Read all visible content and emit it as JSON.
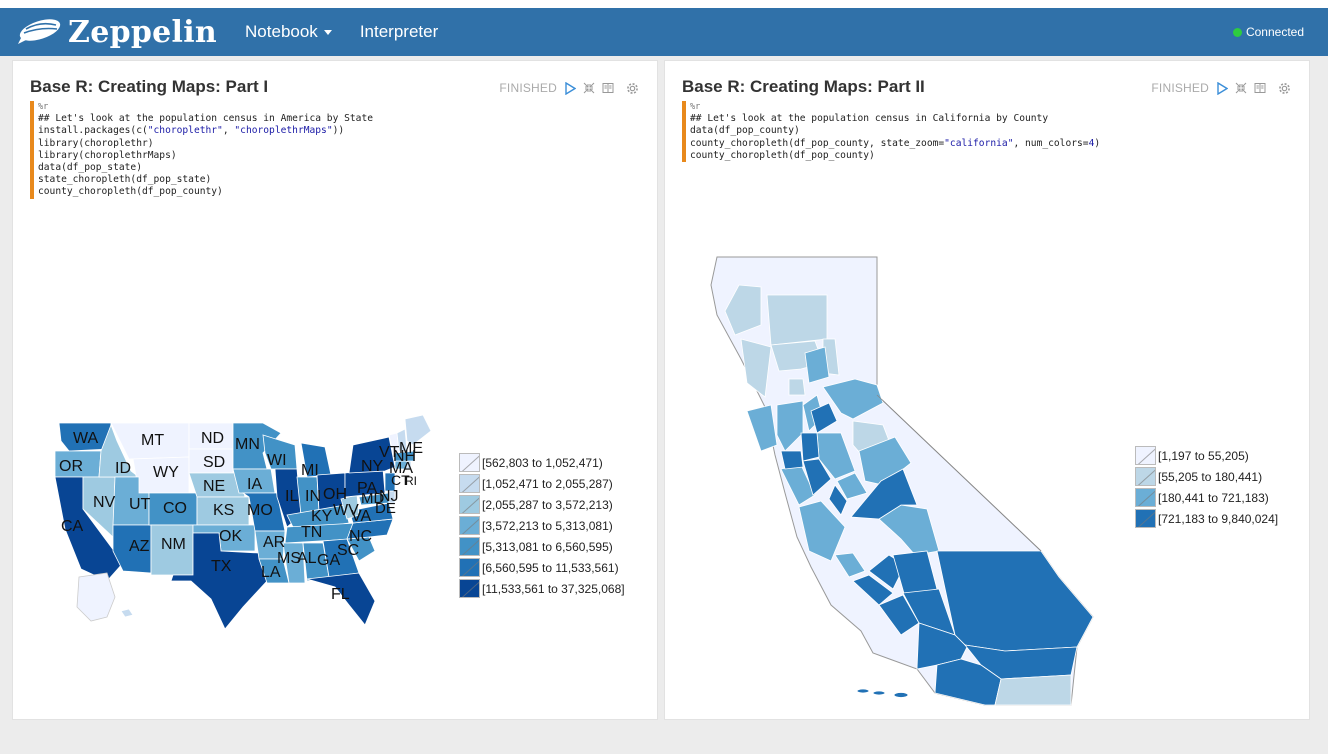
{
  "navbar": {
    "brand": "Zeppelin",
    "menu": [
      {
        "label": "Notebook",
        "has_caret": true
      },
      {
        "label": "Interpreter",
        "has_caret": false
      }
    ],
    "connection_status": "Connected",
    "connection_color": "#2ecc40",
    "bar_color": "#3071a9"
  },
  "paragraphs": [
    {
      "title": "Base R: Creating Maps: Part I",
      "status": "FINISHED",
      "code": {
        "directive": "%r",
        "comment": "## Let's look at the population census in America by State",
        "install_prefix": "install.packages(c(",
        "install_arg1": "\"choroplethr\"",
        "install_sep": ", ",
        "install_arg2": "\"choroplethrMaps\"",
        "install_suffix": "))",
        "lib1": "library(choroplethr)",
        "lib2": "library(choroplethrMaps)",
        "data": "data(df_pop_state)",
        "state_call": "state_choropleth(df_pop_state)",
        "county_call": "county_choropleth(df_pop_county)"
      },
      "legend": [
        {
          "label": "[562,803 to 1,052,471)",
          "color": "#eff3ff"
        },
        {
          "label": "[1,052,471 to 2,055,287)",
          "color": "#c6dbef"
        },
        {
          "label": "[2,055,287 to 3,572,213)",
          "color": "#9ecae1"
        },
        {
          "label": "[3,572,213 to 5,313,081)",
          "color": "#6baed6"
        },
        {
          "label": "[5,313,081 to 6,560,595)",
          "color": "#4292c6"
        },
        {
          "label": "[6,560,595 to 11,533,561)",
          "color": "#2171b5"
        },
        {
          "label": "[11,533,561 to 37,325,068]",
          "color": "#084594"
        }
      ],
      "state_labels": [
        "WA",
        "MT",
        "ND",
        "MN",
        "ME",
        "OR",
        "ID",
        "WY",
        "SD",
        "WI",
        "MI",
        "VT",
        "NH",
        "NY",
        "MA",
        "IA",
        "NE",
        "NV",
        "UT",
        "CO",
        "KS",
        "MO",
        "IL",
        "IN",
        "OH",
        "PA",
        "NJ",
        "CT",
        "RI",
        "CA",
        "KY",
        "WV",
        "VA",
        "MD",
        "DE",
        "OK",
        "TN",
        "AZ",
        "NM",
        "AR",
        "NC",
        "SC",
        "MS",
        "AL",
        "GA",
        "TX",
        "LA",
        "FL"
      ]
    },
    {
      "title": "Base R: Creating Maps: Part II",
      "status": "FINISHED",
      "code": {
        "directive": "%r",
        "comment": "## Let's look at the population census in California by County",
        "data": "data(df_pop_county)",
        "zoom_prefix": "county_choropleth(df_pop_county, state_zoom=",
        "zoom_state": "\"california\"",
        "zoom_mid": ", num_colors=",
        "zoom_num": "4",
        "zoom_suffix": ")",
        "county_call": "county_choropleth(df_pop_county)"
      },
      "legend": [
        {
          "label": "[1,197 to 55,205)",
          "color": "#eff3ff"
        },
        {
          "label": "[55,205 to 180,441)",
          "color": "#bdd7e7"
        },
        {
          "label": "[180,441 to 721,183)",
          "color": "#6baed6"
        },
        {
          "label": "[721,183 to 9,840,024]",
          "color": "#2171b5"
        }
      ]
    }
  ]
}
